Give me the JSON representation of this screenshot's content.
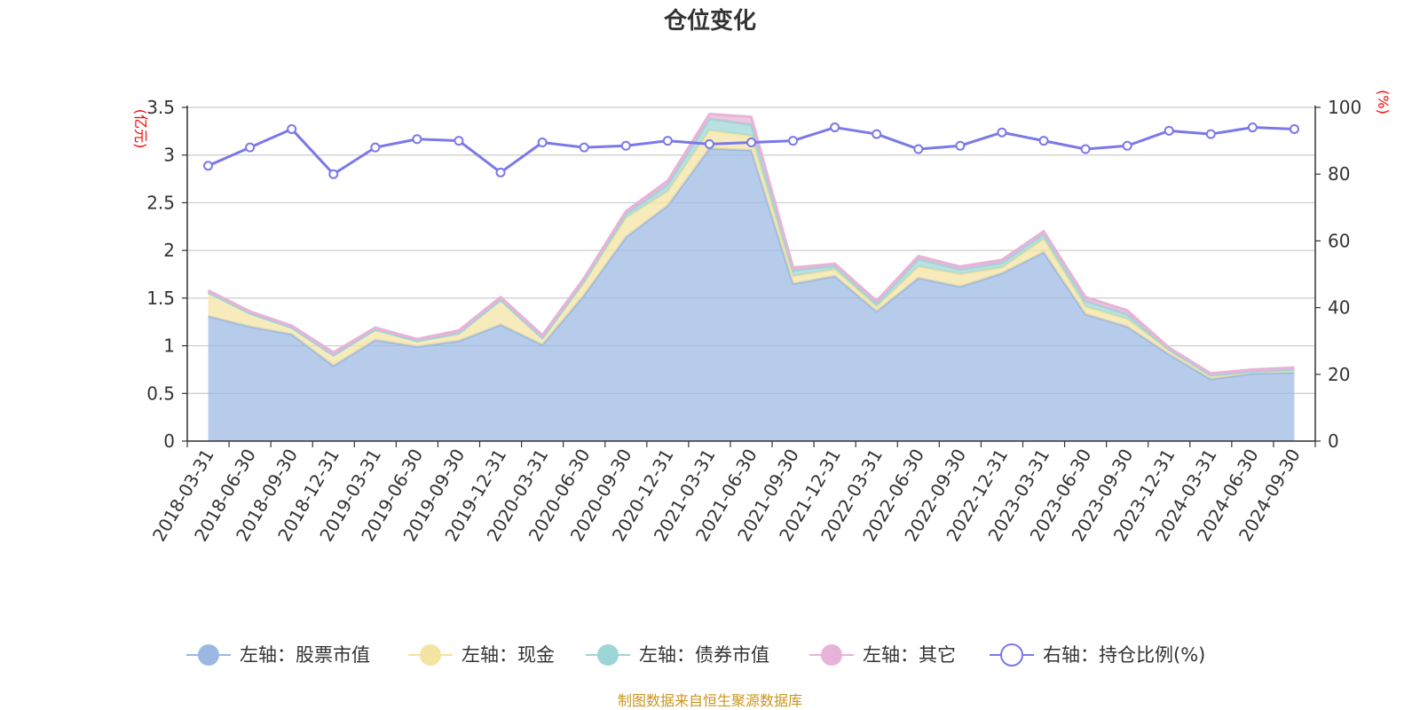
{
  "chart_data": {
    "type": "area",
    "title": "仓位变化",
    "source": "制图数据来自恒生聚源数据库",
    "left_axis": {
      "unit": "(亿元)",
      "ticks": [
        "0",
        "0.5",
        "1",
        "1.5",
        "2",
        "2.5",
        "3",
        "3.5"
      ],
      "ylim": [
        0,
        3.5
      ]
    },
    "right_axis": {
      "unit": "(%)",
      "ticks": [
        "0",
        "20",
        "40",
        "60",
        "80",
        "100"
      ],
      "ylim": [
        0,
        100
      ]
    },
    "grid": true,
    "legend_position": "bottom",
    "x": [
      "2018-03-31",
      "2018-06-30",
      "2018-09-30",
      "2018-12-31",
      "2019-03-31",
      "2019-06-30",
      "2019-09-30",
      "2019-12-31",
      "2020-03-31",
      "2020-06-30",
      "2020-09-30",
      "2020-12-31",
      "2021-03-31",
      "2021-06-30",
      "2021-09-30",
      "2021-12-31",
      "2022-03-31",
      "2022-06-30",
      "2022-09-30",
      "2022-12-31",
      "2023-03-31",
      "2023-06-30",
      "2023-09-30",
      "2023-12-31",
      "2024-03-31",
      "2024-06-30",
      "2024-09-30"
    ],
    "series": [
      {
        "name": "左轴：股票市值",
        "axis": "left",
        "stack": true,
        "color": "#9bb8e3",
        "values": [
          1.31,
          1.2,
          1.12,
          0.79,
          1.06,
          0.99,
          1.05,
          1.22,
          1.01,
          1.53,
          2.14,
          2.47,
          3.07,
          3.05,
          1.65,
          1.73,
          1.36,
          1.71,
          1.62,
          1.76,
          1.98,
          1.33,
          1.2,
          0.91,
          0.65,
          0.71,
          0.72
        ]
      },
      {
        "name": "左轴：现金",
        "axis": "left",
        "stack": true,
        "color": "#f5e3a1",
        "values": [
          0.25,
          0.14,
          0.07,
          0.11,
          0.11,
          0.06,
          0.08,
          0.26,
          0.07,
          0.13,
          0.2,
          0.15,
          0.19,
          0.15,
          0.08,
          0.07,
          0.05,
          0.12,
          0.13,
          0.06,
          0.14,
          0.08,
          0.08,
          0.04,
          0.03,
          0.02,
          0.03
        ]
      },
      {
        "name": "左轴：债券市值",
        "axis": "left",
        "stack": true,
        "color": "#9dd6d6",
        "values": [
          0,
          0,
          0,
          0,
          0,
          0,
          0,
          0,
          0,
          0.02,
          0.04,
          0.07,
          0.12,
          0.12,
          0.06,
          0.04,
          0.03,
          0.08,
          0.05,
          0.05,
          0.05,
          0.06,
          0.05,
          0.01,
          0.01,
          0,
          0
        ]
      },
      {
        "name": "左轴：其它",
        "axis": "left",
        "stack": true,
        "color": "#e7b3d8",
        "values": [
          0.02,
          0.02,
          0.02,
          0.03,
          0.02,
          0.02,
          0.03,
          0.03,
          0.03,
          0.03,
          0.03,
          0.04,
          0.05,
          0.08,
          0.03,
          0.02,
          0.03,
          0.03,
          0.03,
          0.03,
          0.03,
          0.04,
          0.04,
          0.02,
          0.02,
          0.02,
          0.02
        ]
      },
      {
        "name": "右轴：持仓比例(%)",
        "axis": "right",
        "stack": false,
        "color": "#7b79e8",
        "values": [
          82.5,
          88,
          93.5,
          80,
          88,
          90.5,
          90,
          80.5,
          89.5,
          88,
          88.5,
          90,
          89,
          89.5,
          90,
          94,
          92,
          87.5,
          88.5,
          92.5,
          90,
          87.5,
          88.5,
          93,
          92,
          94,
          93.5
        ]
      }
    ]
  }
}
